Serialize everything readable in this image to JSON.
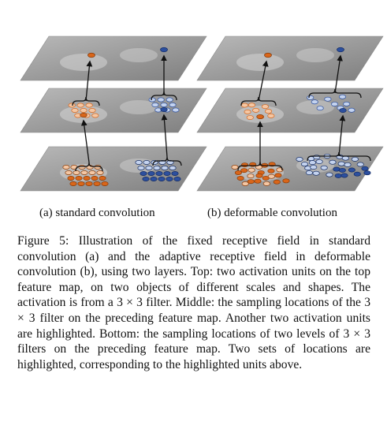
{
  "figure": {
    "subcaption_a": "(a) standard convolution",
    "subcaption_b": "(b) deformable convolution"
  },
  "caption": {
    "label": "Figure 5:",
    "text": "Illustration of the fixed receptive field in standard convolution (a) and the adaptive receptive field in deformable convolution (b), using two layers. Top: two activation units on the top feature map, on two objects of different scales and shapes. The activation is from a 3 × 3 filter. Middle: the sampling locations of the 3 × 3 filter on the preceding feature map. Another two activation units are highlighted. Bottom: the sampling locations of two levels of 3 × 3 filters on the preceding feature map. Two sets of locations are highlighted, corresponding to the highlighted units above."
  },
  "colors": {
    "orange": "#d9661a",
    "orange_light": "#f4c7a4",
    "blue": "#2c4f9e",
    "blue_light": "#c4d3ef",
    "plane": "#9a9a9a"
  }
}
